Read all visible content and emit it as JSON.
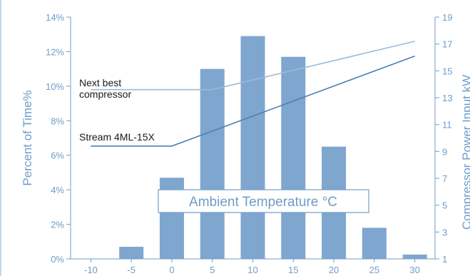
{
  "chart_data": {
    "type": "bar",
    "categories": [
      "-10",
      "-5",
      "0",
      "5",
      "10",
      "15",
      "20",
      "25",
      "30"
    ],
    "x_values": [
      -10,
      -5,
      0,
      5,
      10,
      15,
      20,
      25,
      30
    ],
    "series": [
      {
        "values": [
          0,
          0.7,
          4.7,
          11.0,
          12.9,
          11.7,
          6.5,
          1.8,
          0.25
        ],
        "color": "#7fa6cf"
      }
    ],
    "lines": [
      {
        "name": "Next best compressor",
        "label_lines": [
          "Next best",
          "compressor"
        ],
        "color": "#9dbbd8",
        "points": [
          [
            -10,
            13.6
          ],
          [
            5,
            13.6
          ],
          [
            30,
            17.2
          ]
        ]
      },
      {
        "name": "Stream 4ML-15X",
        "label_lines": [
          "Stream 4ML-15X"
        ],
        "color": "#4a7fb0",
        "points": [
          [
            -10,
            9.4
          ],
          [
            0,
            9.4
          ],
          [
            30,
            16.1
          ]
        ]
      }
    ],
    "title": "",
    "xlabel": "Ambient Temperature °C",
    "ylabel": "Percent of Time%",
    "y2label": "Compressor Power Input kW",
    "ylim": [
      0,
      14
    ],
    "yticks": [
      "0%",
      "2%",
      "4%",
      "6%",
      "8%",
      "10%",
      "12%",
      "14%"
    ],
    "y2lim": [
      1,
      19
    ],
    "y2ticks": [
      "1",
      "3",
      "5",
      "7",
      "9",
      "11",
      "13",
      "15",
      "17",
      "19"
    ],
    "xlim": [
      -12.5,
      32.5
    ],
    "grid": false,
    "legend": "inline-left"
  }
}
